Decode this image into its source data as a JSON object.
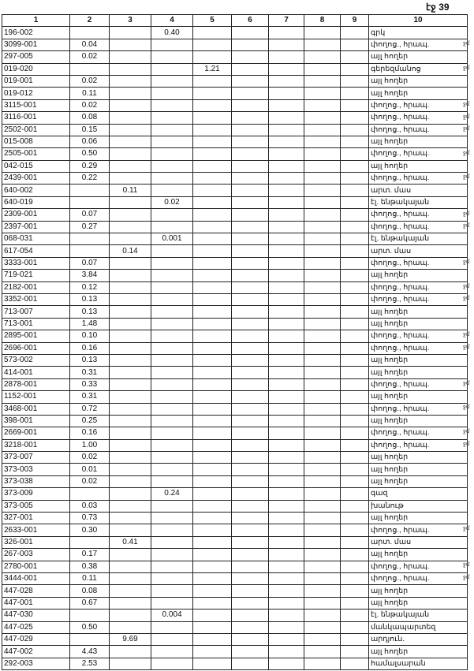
{
  "page_label": "էջ 39",
  "columns": [
    "1",
    "2",
    "3",
    "4",
    "5",
    "6",
    "7",
    "8",
    "9",
    "10"
  ],
  "margin_mark": "ջմ",
  "rows": [
    {
      "cells": [
        "196-002",
        "",
        "",
        "0.40",
        "",
        "",
        "",
        "",
        "",
        "գրկ"
      ],
      "mark": false
    },
    {
      "cells": [
        "3099-001",
        "0.04",
        "",
        "",
        "",
        "",
        "",
        "",
        "",
        "փողոց., հրապ."
      ],
      "mark": true
    },
    {
      "cells": [
        "297-005",
        "0.02",
        "",
        "",
        "",
        "",
        "",
        "",
        "",
        "այլ հողեր"
      ],
      "mark": false
    },
    {
      "cells": [
        "019-020",
        "",
        "",
        "",
        "1.21",
        "",
        "",
        "",
        "",
        "գերեզմանոց"
      ],
      "mark": true
    },
    {
      "cells": [
        "019-001",
        "0.02",
        "",
        "",
        "",
        "",
        "",
        "",
        "",
        "այլ հողեր"
      ],
      "mark": false
    },
    {
      "cells": [
        "019-012",
        "0.11",
        "",
        "",
        "",
        "",
        "",
        "",
        "",
        "այլ հողեր"
      ],
      "mark": false
    },
    {
      "cells": [
        "3115-001",
        "0.02",
        "",
        "",
        "",
        "",
        "",
        "",
        "",
        "փողոց., հրապ."
      ],
      "mark": true
    },
    {
      "cells": [
        "3116-001",
        "0.08",
        "",
        "",
        "",
        "",
        "",
        "",
        "",
        "փողոց., հրապ."
      ],
      "mark": true
    },
    {
      "cells": [
        "2502-001",
        "0.15",
        "",
        "",
        "",
        "",
        "",
        "",
        "",
        "փողոց., հրապ."
      ],
      "mark": true
    },
    {
      "cells": [
        "015-008",
        "0.06",
        "",
        "",
        "",
        "",
        "",
        "",
        "",
        "այլ հողեր"
      ],
      "mark": false
    },
    {
      "cells": [
        "2505-001",
        "0.50",
        "",
        "",
        "",
        "",
        "",
        "",
        "",
        "փողոց., հրապ."
      ],
      "mark": true
    },
    {
      "cells": [
        "042-015",
        "0.29",
        "",
        "",
        "",
        "",
        "",
        "",
        "",
        "այլ հողեր"
      ],
      "mark": false
    },
    {
      "cells": [
        "2439-001",
        "0.22",
        "",
        "",
        "",
        "",
        "",
        "",
        "",
        "փողոց., հրապ."
      ],
      "mark": true
    },
    {
      "cells": [
        "640-002",
        "",
        "0.11",
        "",
        "",
        "",
        "",
        "",
        "",
        "արտ. մաս"
      ],
      "mark": false
    },
    {
      "cells": [
        "640-019",
        "",
        "",
        "0.02",
        "",
        "",
        "",
        "",
        "",
        "էլ. ենթակայան"
      ],
      "mark": false
    },
    {
      "cells": [
        "2309-001",
        "0.07",
        "",
        "",
        "",
        "",
        "",
        "",
        "",
        "փողոց., հրապ."
      ],
      "mark": true
    },
    {
      "cells": [
        "2397-001",
        "0.27",
        "",
        "",
        "",
        "",
        "",
        "",
        "",
        "փողոց., հրապ."
      ],
      "mark": true
    },
    {
      "cells": [
        "068-031",
        "",
        "",
        "0.001",
        "",
        "",
        "",
        "",
        "",
        "էլ. ենթակայան"
      ],
      "mark": false
    },
    {
      "cells": [
        "617-054",
        "",
        "0.14",
        "",
        "",
        "",
        "",
        "",
        "",
        "արտ. մաս"
      ],
      "mark": false
    },
    {
      "cells": [
        "3333-001",
        "0.07",
        "",
        "",
        "",
        "",
        "",
        "",
        "",
        "փողոց., հրապ."
      ],
      "mark": true
    },
    {
      "cells": [
        "719-021",
        "3.84",
        "",
        "",
        "",
        "",
        "",
        "",
        "",
        "այլ հողեր"
      ],
      "mark": false
    },
    {
      "cells": [
        "2182-001",
        "0.12",
        "",
        "",
        "",
        "",
        "",
        "",
        "",
        "փողոց., հրապ."
      ],
      "mark": true
    },
    {
      "cells": [
        "3352-001",
        "0.13",
        "",
        "",
        "",
        "",
        "",
        "",
        "",
        "փողոց., հրապ."
      ],
      "mark": true
    },
    {
      "cells": [
        "713-007",
        "0.13",
        "",
        "",
        "",
        "",
        "",
        "",
        "",
        "այլ հողեր"
      ],
      "mark": false
    },
    {
      "cells": [
        "713-001",
        "1.48",
        "",
        "",
        "",
        "",
        "",
        "",
        "",
        "այլ հողեր"
      ],
      "mark": false
    },
    {
      "cells": [
        "2895-001",
        "0.10",
        "",
        "",
        "",
        "",
        "",
        "",
        "",
        "փողոց., հրապ."
      ],
      "mark": true
    },
    {
      "cells": [
        "2696-001",
        "0.16",
        "",
        "",
        "",
        "",
        "",
        "",
        "",
        "փողոց., հրապ."
      ],
      "mark": true
    },
    {
      "cells": [
        "573-002",
        "0.13",
        "",
        "",
        "",
        "",
        "",
        "",
        "",
        "այլ հողեր"
      ],
      "mark": false
    },
    {
      "cells": [
        "414-001",
        "0.31",
        "",
        "",
        "",
        "",
        "",
        "",
        "",
        "այլ հողեր"
      ],
      "mark": false
    },
    {
      "cells": [
        "2878-001",
        "0.33",
        "",
        "",
        "",
        "",
        "",
        "",
        "",
        "փողոց., հրապ."
      ],
      "mark": true
    },
    {
      "cells": [
        "1152-001",
        "0.31",
        "",
        "",
        "",
        "",
        "",
        "",
        "",
        "այլ հողեր"
      ],
      "mark": false
    },
    {
      "cells": [
        "3468-001",
        "0.72",
        "",
        "",
        "",
        "",
        "",
        "",
        "",
        "փողոց., հրապ."
      ],
      "mark": true
    },
    {
      "cells": [
        "398-001",
        "0.25",
        "",
        "",
        "",
        "",
        "",
        "",
        "",
        "այլ հողեր"
      ],
      "mark": false
    },
    {
      "cells": [
        "2669-001",
        "0.16",
        "",
        "",
        "",
        "",
        "",
        "",
        "",
        "փողոց., հրապ."
      ],
      "mark": true
    },
    {
      "cells": [
        "3218-001",
        "1.00",
        "",
        "",
        "",
        "",
        "",
        "",
        "",
        "փողոց., հրապ."
      ],
      "mark": true
    },
    {
      "cells": [
        "373-007",
        "0.02",
        "",
        "",
        "",
        "",
        "",
        "",
        "",
        "այլ հողեր"
      ],
      "mark": false
    },
    {
      "cells": [
        "373-003",
        "0.01",
        "",
        "",
        "",
        "",
        "",
        "",
        "",
        "այլ հողեր"
      ],
      "mark": false
    },
    {
      "cells": [
        "373-038",
        "0.02",
        "",
        "",
        "",
        "",
        "",
        "",
        "",
        "այլ հողեր"
      ],
      "mark": false
    },
    {
      "cells": [
        "373-009",
        "",
        "",
        "0.24",
        "",
        "",
        "",
        "",
        "",
        "գազ"
      ],
      "mark": false
    },
    {
      "cells": [
        "373-005",
        "0.03",
        "",
        "",
        "",
        "",
        "",
        "",
        "",
        "խանութ"
      ],
      "mark": false
    },
    {
      "cells": [
        "327-001",
        "0.73",
        "",
        "",
        "",
        "",
        "",
        "",
        "",
        "այլ հողեր"
      ],
      "mark": false
    },
    {
      "cells": [
        "2633-001",
        "0.30",
        "",
        "",
        "",
        "",
        "",
        "",
        "",
        "փողոց., հրապ."
      ],
      "mark": true
    },
    {
      "cells": [
        "326-001",
        "",
        "0.41",
        "",
        "",
        "",
        "",
        "",
        "",
        "արտ. մաս"
      ],
      "mark": false
    },
    {
      "cells": [
        "267-003",
        "0.17",
        "",
        "",
        "",
        "",
        "",
        "",
        "",
        "այլ հողեր"
      ],
      "mark": false
    },
    {
      "cells": [
        "2780-001",
        "0.38",
        "",
        "",
        "",
        "",
        "",
        "",
        "",
        "փողոց., հրապ."
      ],
      "mark": true
    },
    {
      "cells": [
        "3444-001",
        "0.11",
        "",
        "",
        "",
        "",
        "",
        "",
        "",
        "փողոց., հրապ."
      ],
      "mark": true
    },
    {
      "cells": [
        "447-028",
        "0.08",
        "",
        "",
        "",
        "",
        "",
        "",
        "",
        "այլ հողեր"
      ],
      "mark": false
    },
    {
      "cells": [
        "447-001",
        "0.67",
        "",
        "",
        "",
        "",
        "",
        "",
        "",
        "այլ հողեր"
      ],
      "mark": false
    },
    {
      "cells": [
        "447-030",
        "",
        "",
        "0.004",
        "",
        "",
        "",
        "",
        "",
        "էլ. ենթակայան"
      ],
      "mark": false
    },
    {
      "cells": [
        "447-025",
        "0.50",
        "",
        "",
        "",
        "",
        "",
        "",
        "",
        "մանկապարտեզ"
      ],
      "mark": false
    },
    {
      "cells": [
        "447-029",
        "",
        "9.69",
        "",
        "",
        "",
        "",
        "",
        "",
        "արդյուն."
      ],
      "mark": false
    },
    {
      "cells": [
        "447-002",
        "4.43",
        "",
        "",
        "",
        "",
        "",
        "",
        "",
        "այլ հողեր"
      ],
      "mark": false
    },
    {
      "cells": [
        "292-003",
        "2.53",
        "",
        "",
        "",
        "",
        "",
        "",
        "",
        "համալսարան"
      ],
      "mark": false
    }
  ]
}
